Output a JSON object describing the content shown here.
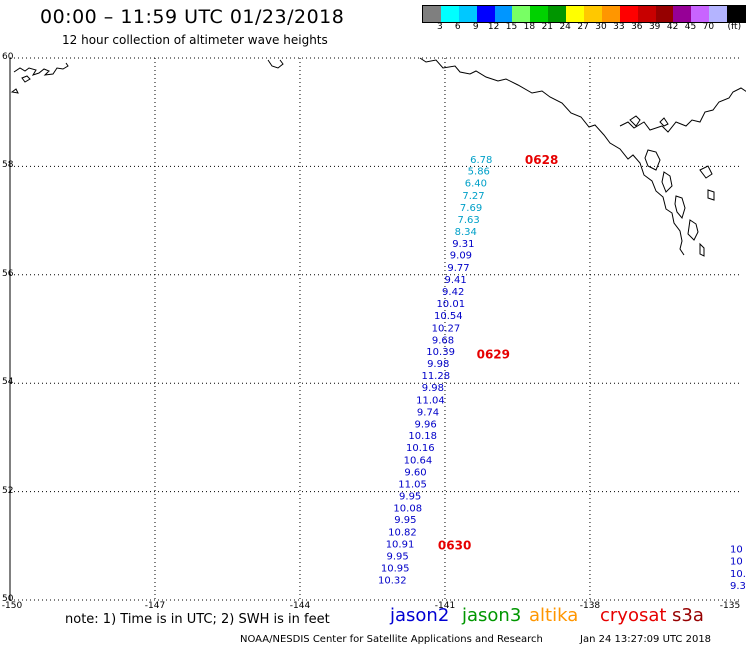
{
  "header": {
    "title": "00:00 – 11:59 UTC 01/23/2018",
    "subtitle": "12 hour collection of altimeter wave heights"
  },
  "colorbar": {
    "colors": [
      "#7f7f7f",
      "#00ffff",
      "#00c8ff",
      "#0000ff",
      "#0096ff",
      "#78ff64",
      "#00d200",
      "#009600",
      "#ffff00",
      "#ffc800",
      "#ff9600",
      "#ff0000",
      "#c80000",
      "#960000",
      "#960096",
      "#c864ff",
      "#b4b4ff",
      "#000000"
    ],
    "labels": [
      "3",
      "6",
      "9",
      "12",
      "15",
      "18",
      "21",
      "24",
      "27",
      "30",
      "33",
      "36",
      "39",
      "42",
      "45",
      "70",
      "(ft)"
    ]
  },
  "axes": {
    "lat_labels": [
      "60",
      "58",
      "56",
      "54",
      "52",
      "50"
    ],
    "lon_labels": [
      "-150",
      "-147",
      "-144",
      "-141",
      "-138",
      "-135"
    ]
  },
  "track": {
    "points": [
      {
        "lat": 58.14,
        "lon": -140.25,
        "v": "6.78",
        "c": "#00a0c8"
      },
      {
        "lat": 57.92,
        "lon": -140.3,
        "v": "5.86",
        "c": "#00a0c8"
      },
      {
        "lat": 57.7,
        "lon": -140.36,
        "v": "6.40",
        "c": "#00a0c8"
      },
      {
        "lat": 57.47,
        "lon": -140.41,
        "v": "7.27",
        "c": "#00a0c8"
      },
      {
        "lat": 57.25,
        "lon": -140.46,
        "v": "7.69",
        "c": "#00a0c8"
      },
      {
        "lat": 57.03,
        "lon": -140.51,
        "v": "7.63",
        "c": "#00a0c8"
      },
      {
        "lat": 56.81,
        "lon": -140.57,
        "v": "8.34",
        "c": "#00a0c8"
      },
      {
        "lat": 56.59,
        "lon": -140.62,
        "v": "9.31",
        "c": "#0000c8"
      },
      {
        "lat": 56.37,
        "lon": -140.67,
        "v": "9.09",
        "c": "#0000c8"
      },
      {
        "lat": 56.14,
        "lon": -140.72,
        "v": "9.77",
        "c": "#0000c8"
      },
      {
        "lat": 55.92,
        "lon": -140.78,
        "v": "9.41",
        "c": "#0000c8"
      },
      {
        "lat": 55.7,
        "lon": -140.83,
        "v": "9.42",
        "c": "#0000c8"
      },
      {
        "lat": 55.48,
        "lon": -140.88,
        "v": "10.01",
        "c": "#0000c8"
      },
      {
        "lat": 55.26,
        "lon": -140.93,
        "v": "10.54",
        "c": "#0000c8"
      },
      {
        "lat": 55.03,
        "lon": -140.98,
        "v": "10.27",
        "c": "#0000c8"
      },
      {
        "lat": 54.81,
        "lon": -141.04,
        "v": "9.68",
        "c": "#0000c8"
      },
      {
        "lat": 54.59,
        "lon": -141.09,
        "v": "10.39",
        "c": "#0000c8"
      },
      {
        "lat": 54.37,
        "lon": -141.14,
        "v": "9.98",
        "c": "#0000c8"
      },
      {
        "lat": 54.15,
        "lon": -141.19,
        "v": "11.28",
        "c": "#0000c8"
      },
      {
        "lat": 53.93,
        "lon": -141.25,
        "v": "9.98",
        "c": "#0000c8"
      },
      {
        "lat": 53.7,
        "lon": -141.3,
        "v": "11.04",
        "c": "#0000c8"
      },
      {
        "lat": 53.48,
        "lon": -141.35,
        "v": "9.74",
        "c": "#0000c8"
      },
      {
        "lat": 53.26,
        "lon": -141.4,
        "v": "9.96",
        "c": "#0000c8"
      },
      {
        "lat": 53.04,
        "lon": -141.46,
        "v": "10.18",
        "c": "#0000c8"
      },
      {
        "lat": 52.82,
        "lon": -141.51,
        "v": "10.16",
        "c": "#0000c8"
      },
      {
        "lat": 52.59,
        "lon": -141.56,
        "v": "10.64",
        "c": "#0000c8"
      },
      {
        "lat": 52.37,
        "lon": -141.61,
        "v": "9.60",
        "c": "#0000c8"
      },
      {
        "lat": 52.15,
        "lon": -141.67,
        "v": "11.05",
        "c": "#0000c8"
      },
      {
        "lat": 51.93,
        "lon": -141.72,
        "v": "9.95",
        "c": "#0000c8"
      },
      {
        "lat": 51.71,
        "lon": -141.77,
        "v": "10.08",
        "c": "#0000c8"
      },
      {
        "lat": 51.49,
        "lon": -141.82,
        "v": "9.95",
        "c": "#0000c8"
      },
      {
        "lat": 51.26,
        "lon": -141.88,
        "v": "10.82",
        "c": "#0000c8"
      },
      {
        "lat": 51.04,
        "lon": -141.93,
        "v": "10.91",
        "c": "#0000c8"
      },
      {
        "lat": 50.82,
        "lon": -141.98,
        "v": "9.95",
        "c": "#0000c8"
      },
      {
        "lat": 50.6,
        "lon": -142.03,
        "v": "10.95",
        "c": "#0000c8"
      },
      {
        "lat": 50.38,
        "lon": -142.09,
        "v": "10.32",
        "c": "#0000c8"
      }
    ],
    "times": [
      {
        "lat": 58.14,
        "lon": -139.0,
        "t": "0628"
      },
      {
        "lat": 54.55,
        "lon": -140.0,
        "t": "0629"
      },
      {
        "lat": 51.02,
        "lon": -140.8,
        "t": "0630"
      }
    ],
    "edge": [
      {
        "lat": 50.95,
        "lon": -134.45,
        "v": "10"
      },
      {
        "lat": 50.73,
        "lon": -134.5,
        "v": "10"
      },
      {
        "lat": 50.5,
        "lon": -134.55,
        "v": "10."
      },
      {
        "lat": 50.28,
        "lon": -134.6,
        "v": "9.3"
      }
    ]
  },
  "legend": {
    "note": "note: 1) Time is in UTC; 2) SWH is in feet",
    "jason2": "jason2",
    "jason3": "jason3",
    "altika": "altika",
    "cryosat": "cryosat",
    "s3a": "s3a"
  },
  "footer": {
    "credit": "NOAA/NESDIS Center for Satellite Applications and Research",
    "timestamp": "Jan 24 13:27:09 UTC 2018"
  }
}
